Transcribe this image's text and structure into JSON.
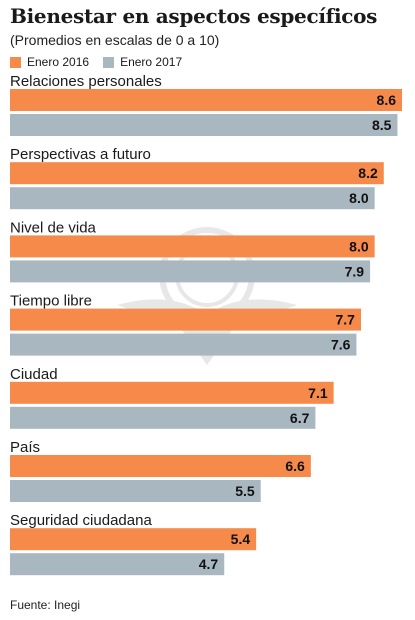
{
  "title": "Bienestar en aspectos específicos",
  "subtitle": "(Promedios en escalas de 0 a 10)",
  "source": "Fuente: Inegi",
  "colors": {
    "s2016": "#F58A4B",
    "s2017": "#A9B7C1"
  },
  "chart_data": {
    "type": "bar",
    "orientation": "horizontal",
    "categories": [
      "Relaciones personales",
      "Perspectivas a futuro",
      "Nivel de vida",
      "Tiempo  libre",
      "Ciudad",
      "País",
      "Seguridad ciudadana"
    ],
    "series": [
      {
        "name": "Enero 2016",
        "values": [
          8.6,
          8.2,
          8.0,
          7.7,
          7.1,
          6.6,
          5.4
        ],
        "color": "#F58A4B"
      },
      {
        "name": "Enero 2017",
        "values": [
          8.5,
          8.0,
          7.9,
          7.6,
          6.7,
          5.5,
          4.7
        ],
        "color": "#A9B7C1"
      }
    ],
    "value_labels": [
      [
        "8.6",
        "8.2",
        "8.0",
        "7.7",
        "7.1",
        "6.6",
        "5.4"
      ],
      [
        "8.5",
        "8.0",
        "7.9",
        "7.6",
        "6.7",
        "5.5",
        "4.7"
      ]
    ],
    "xlim": [
      0,
      8.6
    ],
    "grid": false,
    "legend": "top-left"
  }
}
